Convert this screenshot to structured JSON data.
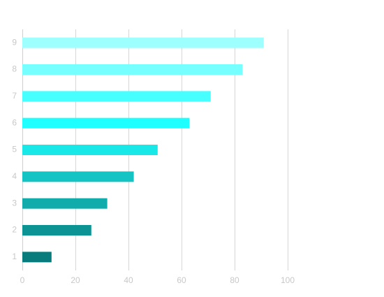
{
  "chart_data": {
    "type": "bar",
    "orientation": "horizontal",
    "categories": [
      "1",
      "2",
      "3",
      "4",
      "5",
      "6",
      "7",
      "8",
      "9"
    ],
    "values": [
      11,
      26,
      32,
      42,
      51,
      63,
      71,
      83,
      91
    ],
    "colors": [
      "#087c7c",
      "#0c9494",
      "#10acac",
      "#14c4c4",
      "#18e8e8",
      "#1effff",
      "#48ffff",
      "#76ffff",
      "#9effff"
    ],
    "xlim": [
      0,
      100
    ],
    "xticks": [
      "0",
      "20",
      "40",
      "60",
      "80",
      "100"
    ],
    "xtick_values": [
      0,
      20,
      40,
      60,
      80,
      100
    ],
    "grid": true,
    "title": "",
    "xlabel": "",
    "ylabel": ""
  }
}
